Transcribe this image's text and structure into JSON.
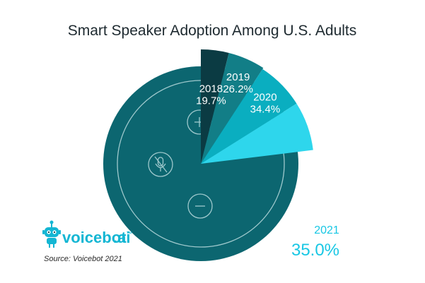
{
  "chart_data": {
    "type": "pie",
    "title": "Smart Speaker Adoption Among U.S. Adults",
    "series": [
      {
        "year": "2018",
        "label": "19.7%",
        "value": 19.7,
        "color": "#0b3b43"
      },
      {
        "year": "2019",
        "label": "26.2%",
        "value": 26.2,
        "color": "#127e87"
      },
      {
        "year": "2020",
        "label": "34.4%",
        "value": 34.4,
        "color": "#0aaec0"
      },
      {
        "year": "2021",
        "label": "35.0%",
        "value": 35.0,
        "color": "#2ed6ec"
      }
    ],
    "base_color": "#0c6670",
    "source": "Source: Voicebot 2021"
  },
  "brand": {
    "name": "voicebot",
    "suffix": ".ai",
    "tm": "™",
    "color": "#14b6d3"
  },
  "colors": {
    "ring": "#9fc9cd",
    "outside_label": "#18c7e4"
  }
}
